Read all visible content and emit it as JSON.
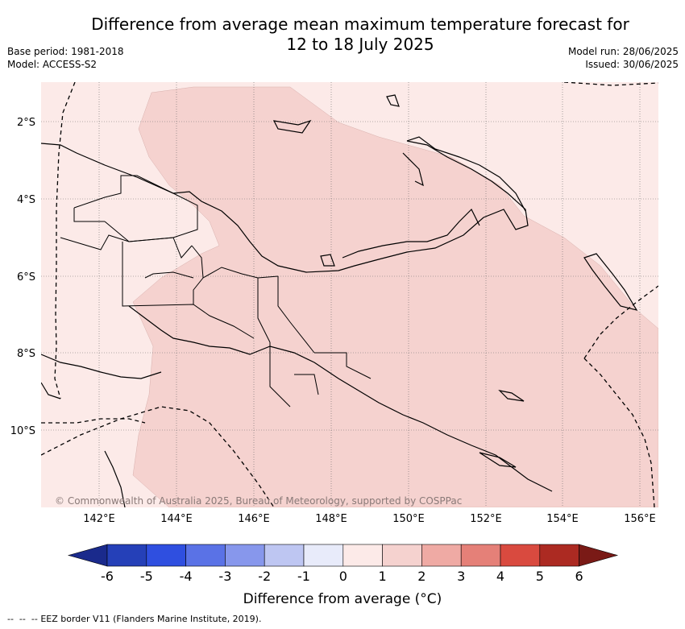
{
  "title_line1": "Difference from average mean maximum temperature forecast for",
  "title_line2": "12 to 18 July 2025",
  "base_period": "Base period: 1981-2018",
  "model": "Model: ACCESS-S2",
  "model_run": "Model run: 28/06/2025",
  "issued": "Issued: 30/06/2025",
  "copyright": "© Commonwealth of Australia 2025, Bureau of Meteorology, supported by COSPPac",
  "lat_labels": [
    "2°S",
    "4°S",
    "6°S",
    "8°S",
    "10°S"
  ],
  "lon_labels": [
    "142°E",
    "144°E",
    "146°E",
    "148°E",
    "150°E",
    "152°E",
    "154°E",
    "156°E"
  ],
  "colorbar": {
    "title": "Difference from average (°C)",
    "tick_labels": [
      "-6",
      "-5",
      "-4",
      "-3",
      "-2",
      "-1",
      "0",
      "1",
      "2",
      "3",
      "4",
      "5",
      "6"
    ],
    "colors": [
      "#1a2a8c",
      "#2540b8",
      "#2f4fe0",
      "#5a72e6",
      "#8797ec",
      "#bec6f2",
      "#e8ebfa",
      "#fceae8",
      "#f5d2cf",
      "#efaaa4",
      "#e58078",
      "#d94a3f",
      "#ac2a22",
      "#7a1a16"
    ]
  },
  "legend_line": "EEZ border V11 (Flanders Marine Institute, 2019).",
  "field_colors": {
    "bin_0_to_1": "#fceae8",
    "bin_1_to_2": "#f5d2cf"
  }
}
